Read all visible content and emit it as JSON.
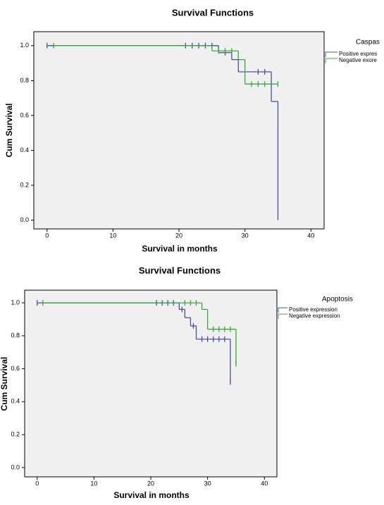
{
  "chart_data": [
    {
      "type": "step",
      "title": "Survival Functions",
      "x_label": "Survival in months",
      "y_label": "Cum Survival",
      "legend_title": "Caspas",
      "xlim": [
        -2,
        42
      ],
      "ylim": [
        -0.05,
        1.08
      ],
      "xticks": [
        0,
        10,
        20,
        30,
        40
      ],
      "yticks": [
        {
          "value": 0,
          "label": "0.0"
        },
        {
          "value": 0.2,
          "label": "0.2"
        },
        {
          "value": 0.4,
          "label": "0.4"
        },
        {
          "value": 0.6,
          "label": "0.6"
        },
        {
          "value": 0.8,
          "label": "0.8"
        },
        {
          "value": 1,
          "label": "1.0"
        }
      ],
      "series": [
        {
          "name": "Positive expres",
          "color": "#46509c",
          "x": [
            0,
            26,
            28,
            29,
            34,
            35
          ],
          "values": [
            1,
            0.96,
            0.92,
            0.85,
            0.68,
            0
          ],
          "censor_x": [
            0,
            21,
            22,
            23,
            24,
            25,
            27,
            32,
            33
          ],
          "censor_values": [
            1,
            1,
            1,
            1,
            1,
            1,
            0.96,
            0.85,
            0.85
          ]
        },
        {
          "name": "Negative exore",
          "color": "#3aa83f",
          "x": [
            1,
            25,
            29,
            30
          ],
          "values": [
            1,
            0.97,
            0.92,
            0.78
          ],
          "censor_x": [
            1,
            26,
            27,
            28,
            31,
            32,
            33,
            35
          ],
          "censor_values": [
            1,
            0.97,
            0.97,
            0.97,
            0.78,
            0.78,
            0.78,
            0.78
          ]
        }
      ]
    },
    {
      "type": "step",
      "title": "Survival Functions",
      "x_label": "Survival in months",
      "y_label": "Cum Survival",
      "legend_title": "Apoptosis",
      "xlim": [
        -2.2,
        42.2
      ],
      "ylim": [
        -0.056,
        1.077
      ],
      "xticks": [
        0,
        10,
        20,
        30,
        40
      ],
      "yticks": [
        {
          "value": 0,
          "label": "0.0"
        },
        {
          "value": 0.2,
          "label": "0.2"
        },
        {
          "value": 0.4,
          "label": "0.4"
        },
        {
          "value": 0.6,
          "label": "0.6"
        },
        {
          "value": 0.8,
          "label": "0.8"
        },
        {
          "value": 1,
          "label": "1.0"
        }
      ],
      "series": [
        {
          "name": "Positive expression",
          "color": "#46509c",
          "x": [
            0,
            25,
            26,
            27,
            28,
            34
          ],
          "values": [
            1,
            0.96,
            0.91,
            0.86,
            0.78,
            0.52
          ],
          "censor_x": [
            0,
            21,
            22,
            23,
            24,
            25.5,
            27.5,
            29,
            30,
            31,
            32,
            33,
            34
          ],
          "censor_values": [
            1,
            1,
            1,
            1,
            1,
            0.96,
            0.86,
            0.78,
            0.78,
            0.78,
            0.78,
            0.78,
            0.52
          ]
        },
        {
          "name": "Negative expression",
          "color": "#3aa83f",
          "x": [
            1,
            29,
            30,
            35
          ],
          "values": [
            1,
            0.96,
            0.84,
            0.63
          ],
          "censor_x": [
            1,
            26,
            27,
            28,
            31,
            32,
            33,
            34,
            35
          ],
          "censor_values": [
            1,
            1,
            1,
            1,
            0.84,
            0.84,
            0.84,
            0.84,
            0.63
          ]
        }
      ]
    }
  ]
}
